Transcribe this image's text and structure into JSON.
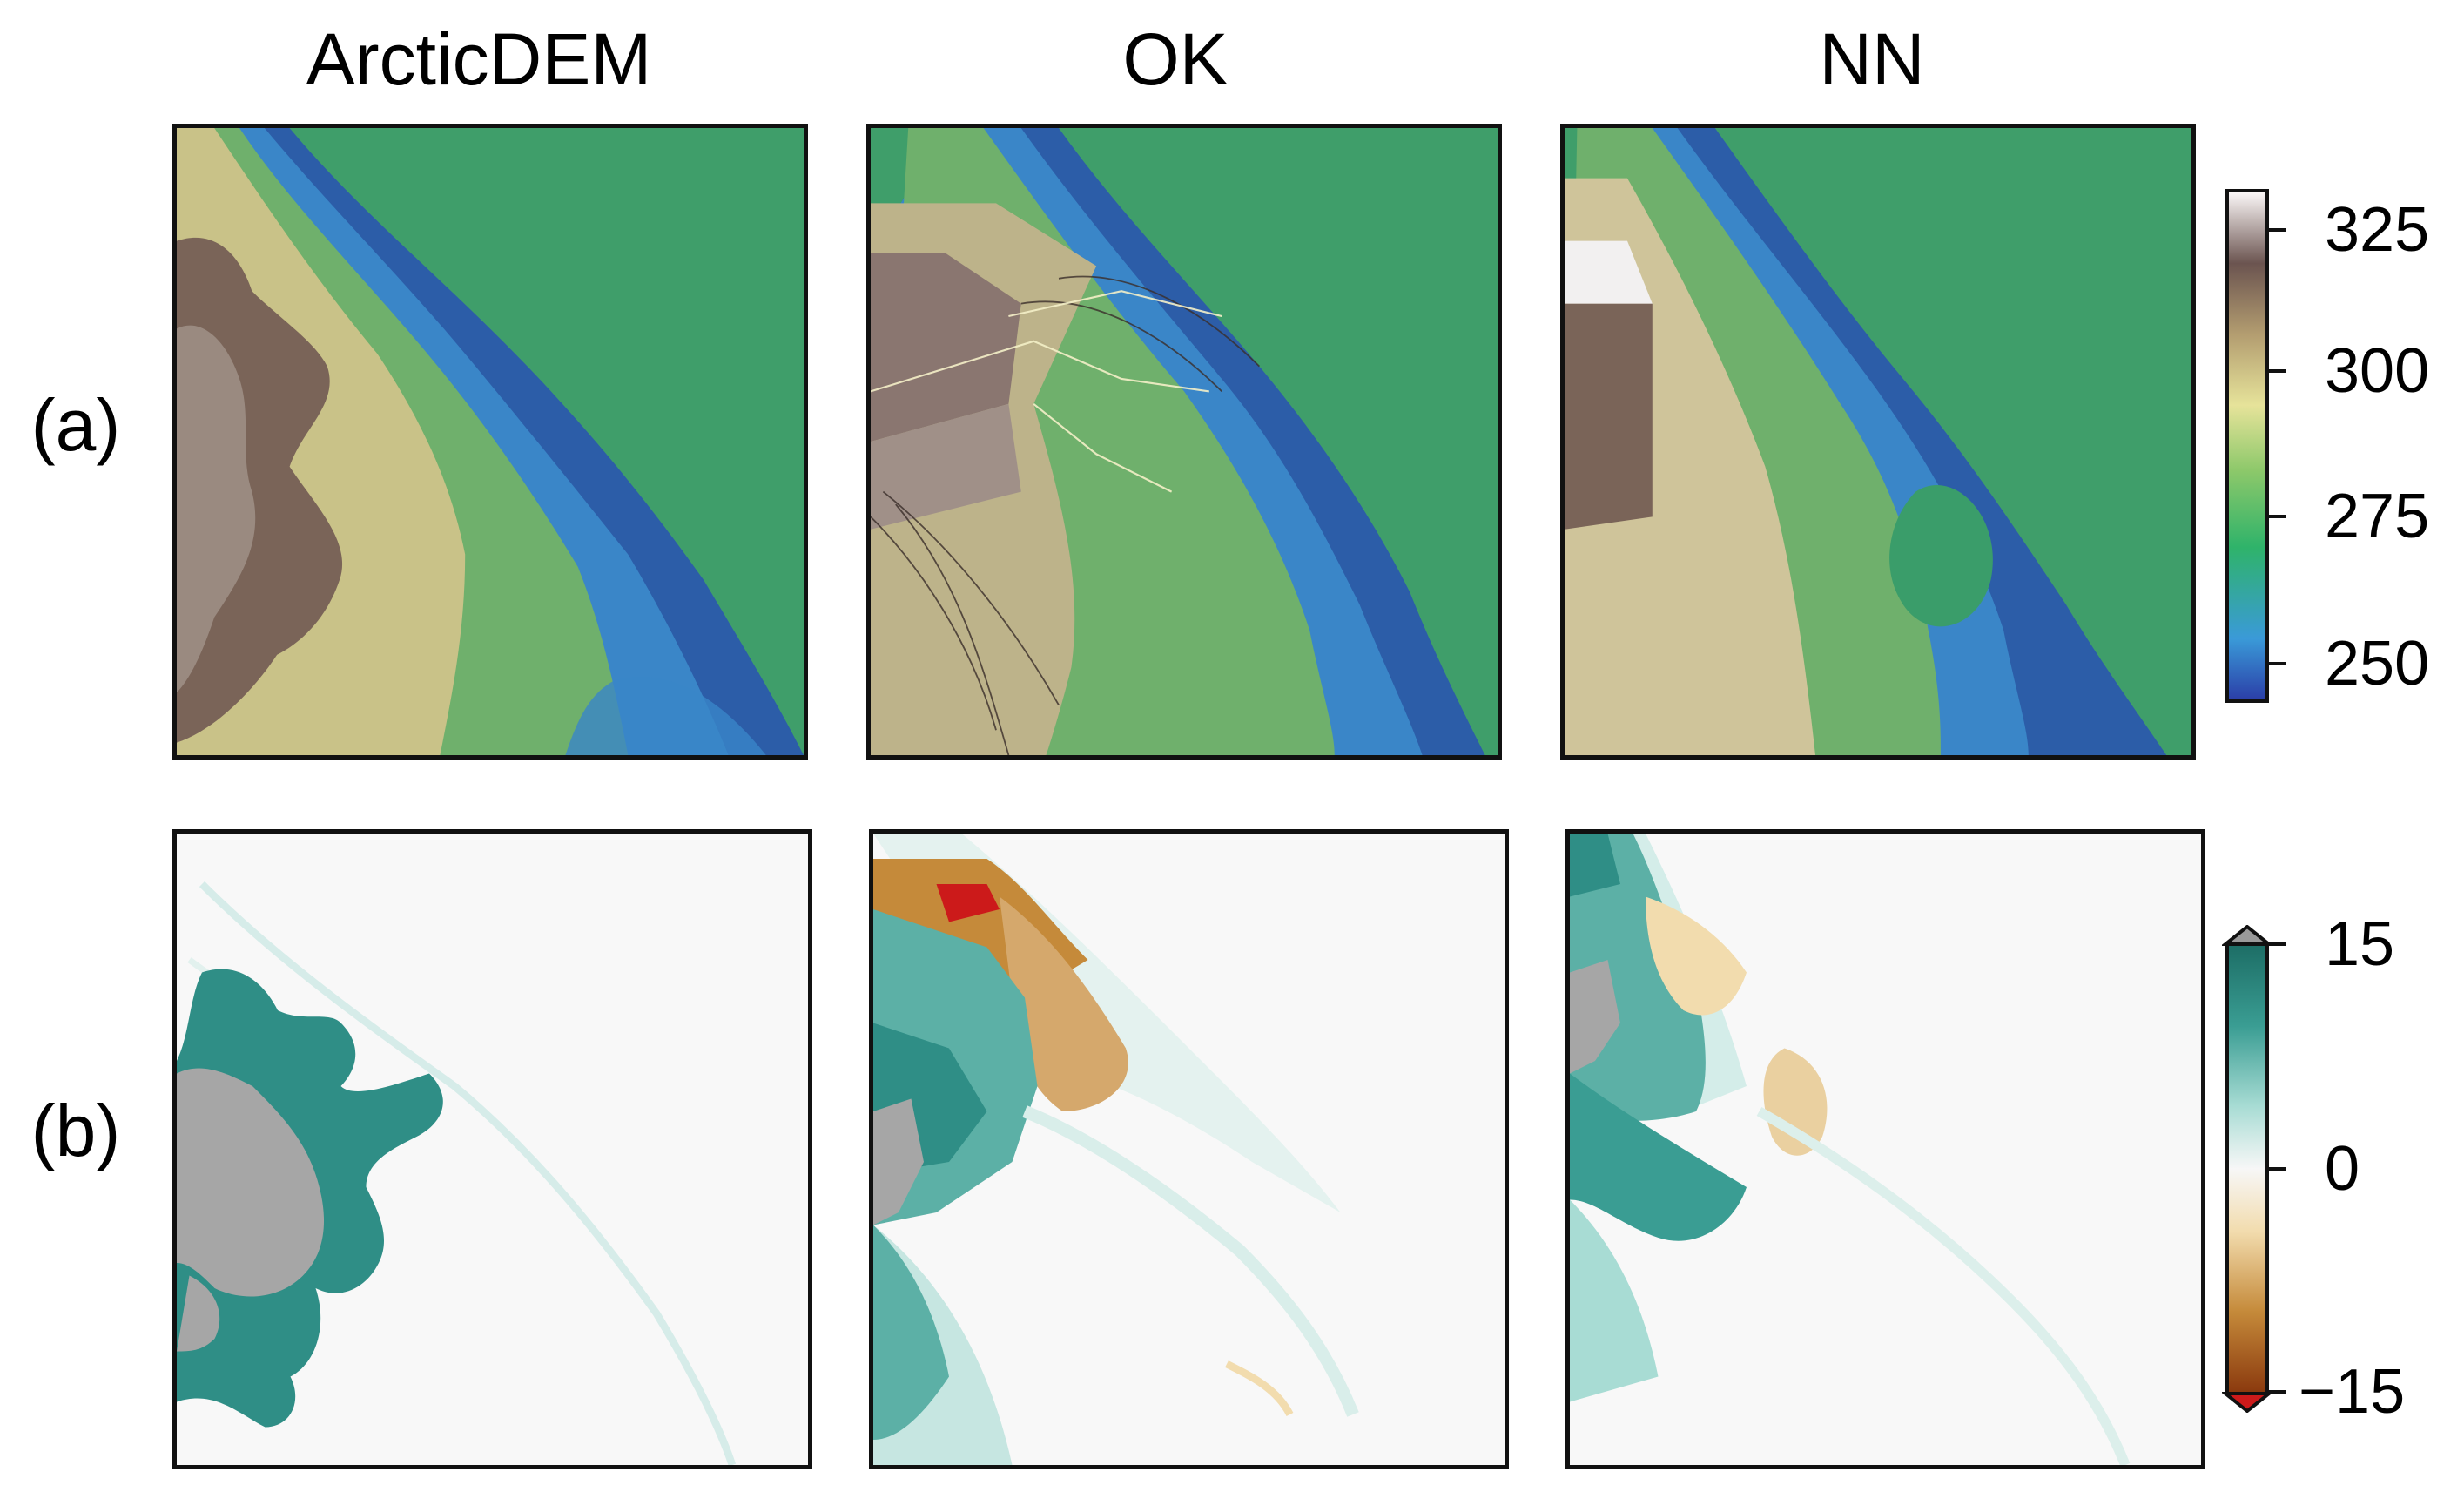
{
  "columns": [
    "ArcticDEM",
    "OK",
    "NN"
  ],
  "rows": [
    "(a)",
    "(b)"
  ],
  "colorbar_elevation": {
    "ticks": [
      "325",
      "300",
      "275",
      "250"
    ],
    "colors": [
      "#2b3fa8",
      "#3a9ad8",
      "#2fb36a",
      "#8cc86a",
      "#e6e39a",
      "#b39d70",
      "#6b5450",
      "#fbf7f7"
    ]
  },
  "colorbar_difference": {
    "ticks": [
      "15",
      "0",
      "−15"
    ],
    "colors": [
      "#8b3a0e",
      "#c58a3a",
      "#f2dcae",
      "#f7f7f7",
      "#a8dcd4",
      "#3a9d93",
      "#1d6e66"
    ],
    "over_color": "#9a9a9a",
    "under_color": "#cc1a1a"
  },
  "palette": {
    "ocean_deep": "#2c3f8f",
    "blue": "#3f8fd0",
    "green": "#3f9e6a",
    "yellow": "#d6cf8e",
    "brown": "#7a6458",
    "gray_nodata": "#a6a6a6",
    "teal": "#2f8e86",
    "orange": "#c47c2a"
  }
}
